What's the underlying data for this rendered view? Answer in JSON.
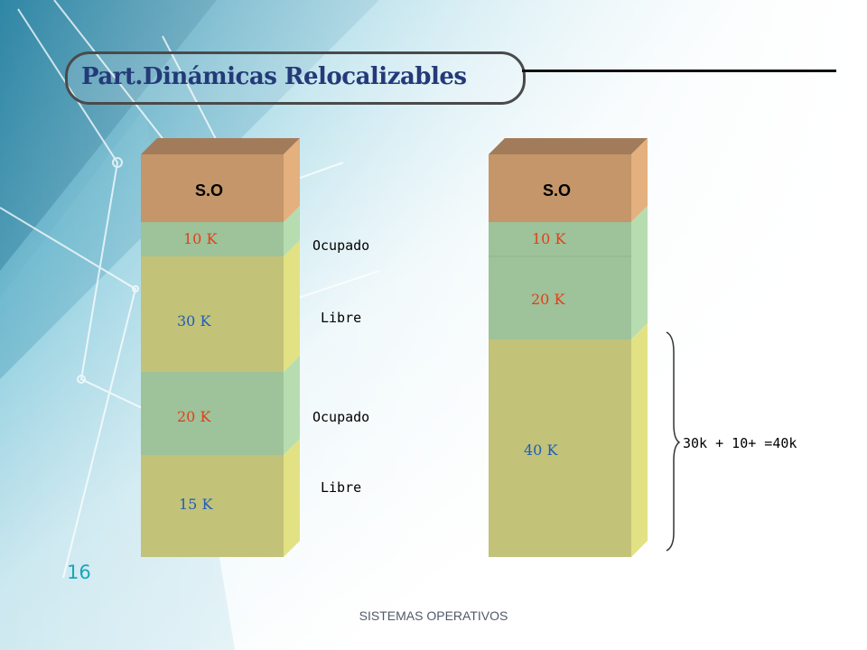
{
  "slide": {
    "title": "Part.Dinámicas Relocalizables",
    "number": "16",
    "footer": "SISTEMAS OPERATIVOS"
  },
  "colors": {
    "os_block": "#c4966a",
    "occupied_block": "#9ec29a",
    "free_block": "#c2c279",
    "title_text": "#243a78",
    "size_red": "#e0401a",
    "size_blue": "#1e5fb8"
  },
  "left_column": {
    "os_label": "S.O",
    "segments": [
      {
        "size": "10 K",
        "state": "Ocupado"
      },
      {
        "size": "30 K",
        "state": "Libre"
      },
      {
        "size": "20 K",
        "state": "Ocupado"
      },
      {
        "size": "15 K",
        "state": "Libre"
      }
    ]
  },
  "right_column": {
    "os_label": "S.O",
    "segments": [
      {
        "size": "10 K"
      },
      {
        "size": "20 K"
      },
      {
        "size": "40 K"
      }
    ],
    "brace_note": "30k + 10+ =40k"
  }
}
